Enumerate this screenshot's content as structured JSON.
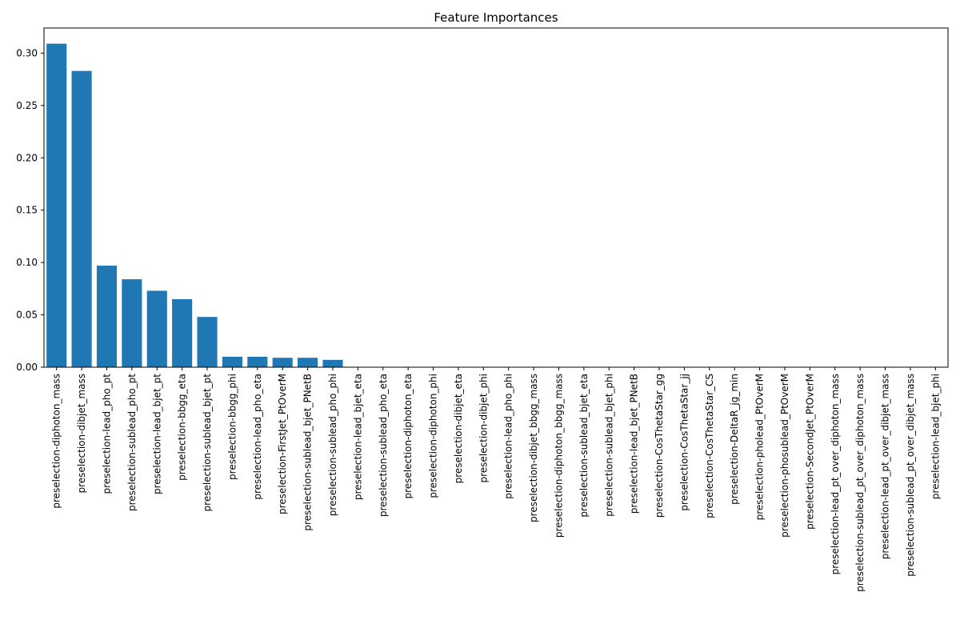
{
  "chart_data": {
    "type": "bar",
    "title": "Feature Importances",
    "xlabel": "",
    "ylabel": "",
    "ylim": [
      0,
      0.324
    ],
    "yticks": [
      0.0,
      0.05,
      0.1,
      0.15,
      0.2,
      0.25,
      0.3
    ],
    "ytick_labels": [
      "0.00",
      "0.05",
      "0.10",
      "0.15",
      "0.20",
      "0.25",
      "0.30"
    ],
    "grid": false,
    "bar_color": "#1f77b4",
    "categories": [
      "preselection-diphoton_mass",
      "preselection-dibjet_mass",
      "preselection-lead_pho_pt",
      "preselection-sublead_pho_pt",
      "preselection-lead_bjet_pt",
      "preselection-bbgg_eta",
      "preselection-sublead_bjet_pt",
      "preselection-bbgg_phi",
      "preselection-lead_pho_eta",
      "preselection-FirstJet_PtOverM",
      "preselection-sublead_bjet_PNetB",
      "preselection-sublead_pho_phi",
      "preselection-lead_bjet_eta",
      "preselection-sublead_pho_eta",
      "preselection-diphoton_eta",
      "preselection-diphoton_phi",
      "preselection-dibjet_eta",
      "preselection-dibjet_phi",
      "preselection-lead_pho_phi",
      "preselection-dibjet_bbgg_mass",
      "preselection-diphoton_bbgg_mass",
      "preselection-sublead_bjet_eta",
      "preselection-sublead_bjet_phi",
      "preselection-lead_bjet_PNetB",
      "preselection-CosThetaStar_gg",
      "preselection-CosThetaStar_jj",
      "preselection-CosThetaStar_CS",
      "preselection-DeltaR_jg_min",
      "preselection-pholead_PtOverM",
      "preselection-phosublead_PtOverM",
      "preselection-SecondJet_PtOverM",
      "preselection-lead_pt_over_diphoton_mass",
      "preselection-sublead_pt_over_diphoton_mass",
      "preselection-lead_pt_over_dibjet_mass",
      "preselection-sublead_pt_over_dibjet_mass",
      "preselection-lead_bjet_phi"
    ],
    "values": [
      0.309,
      0.283,
      0.097,
      0.084,
      0.073,
      0.065,
      0.048,
      0.01,
      0.01,
      0.009,
      0.009,
      0.007,
      0,
      0,
      0,
      0,
      0,
      0,
      0,
      0,
      0,
      0,
      0,
      0,
      0,
      0,
      0,
      0,
      0,
      0,
      0,
      0,
      0,
      0,
      0,
      0
    ]
  }
}
